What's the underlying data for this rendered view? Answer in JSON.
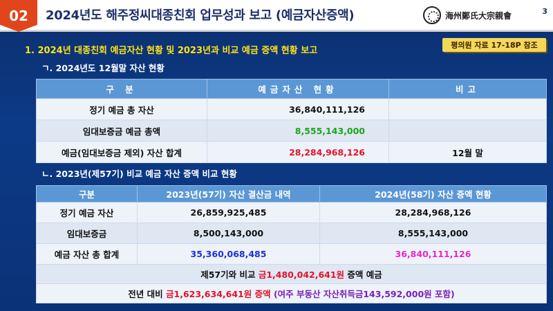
{
  "header": {
    "slide_number": "02",
    "title": "2024년도 해주정씨대종친회  업무성과 보고 (예금자산증액)",
    "logo_text": "海州鄭氏大宗親會",
    "page_number": "3"
  },
  "section1": {
    "heading": "1. 2024년 대종친회 예금자산 현황 및 2023년과 비교 예금 증액 현황 보고",
    "reference_badge": "평의원 자료 17-18P 참조"
  },
  "table1": {
    "subtitle": "ㄱ. 2024년도 12월말 자산 현황",
    "headers": [
      "구 분",
      "예금자산 현황",
      "비고"
    ],
    "rows": [
      {
        "label": "정기 예금 총 자산",
        "value": "36,840,111,126",
        "note": ""
      },
      {
        "label": "임대보증금  예금 총액",
        "value": "8,555,143,000",
        "note": ""
      },
      {
        "label": "예금(임대보증금 제외) 자산 합계",
        "value": "28,284,968,126",
        "note": "12월 말"
      }
    ]
  },
  "table2": {
    "subtitle": "ㄴ. 2023년(제57기) 비교 예금 자산 증액 비교 현황",
    "headers": [
      "구분",
      "2023년(57기) 자산 결산금 내역",
      "2024년(58기) 자산 증액 현황"
    ],
    "rows": [
      {
        "label": "정기 예금 자산",
        "v2023": "26,859,925,485",
        "v2024": "28,284,968,126"
      },
      {
        "label": "임대보증금",
        "v2023": "8,500,143,000",
        "v2024": "8,555,143,000"
      },
      {
        "label": "예금 자산 총 합계",
        "v2023": "35,360,068,485",
        "v2024": "36,840,111,126"
      }
    ],
    "summary1": {
      "prefix": "제57기와  비교 ",
      "amount": "금1,480,042,641원",
      "suffix": "  증액 예금"
    },
    "summary2": {
      "prefix": "전년 대비 ",
      "amount": "금1,623,634,641원 증액",
      "detail": " (여주 부동산 자산취득금143,592,000원 포함)"
    }
  },
  "colors": {
    "background": "#0d3a86",
    "header_accent": "#e0451c",
    "table_header": "#5b97d4",
    "highlight_yellow": "#ffe21a",
    "green": "#1aa51a",
    "red": "#e3122a",
    "blue": "#1e2fd6",
    "magenta": "#e628c8",
    "purple": "#7a1fb8"
  }
}
